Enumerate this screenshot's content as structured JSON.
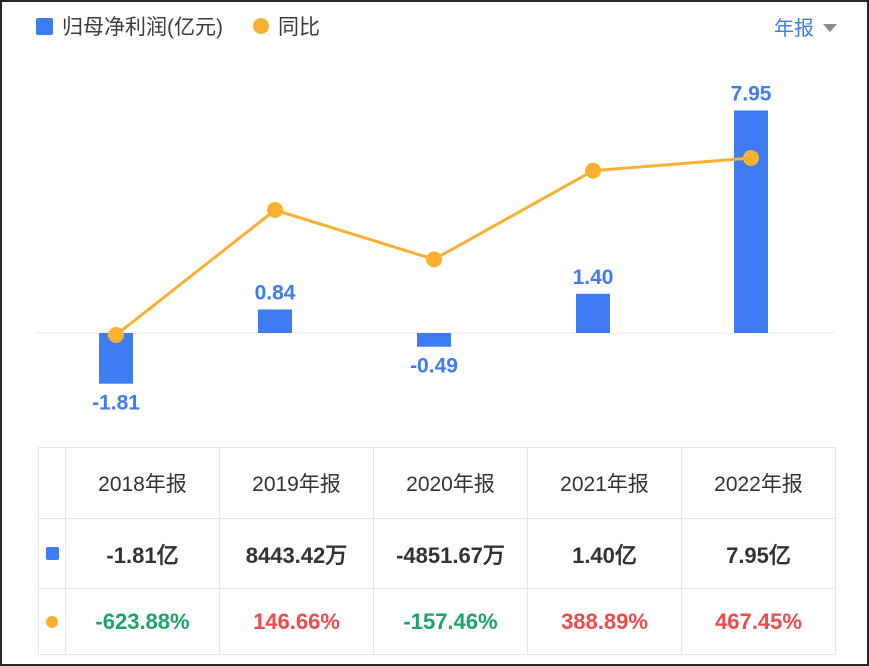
{
  "legend": {
    "profit_label": "归母净利润(亿元)",
    "yoy_label": "同比"
  },
  "period_selector": {
    "label": "年报"
  },
  "colors": {
    "blue": "#3D7CF4",
    "orange": "#FBB034",
    "green": "#1CA566",
    "red": "#F3494B",
    "axis_line": "#EAEAEA"
  },
  "chart_data": {
    "type": "bar+line",
    "categories": [
      "2018年报",
      "2019年报",
      "2020年报",
      "2021年报",
      "2022年报"
    ],
    "series": [
      {
        "name": "归母净利润(亿元)",
        "type": "bar",
        "unit": "亿元",
        "values": [
          -1.81,
          0.84,
          -0.49,
          1.4,
          7.95
        ],
        "labels": [
          "-1.81",
          "0.84",
          "-0.49",
          "1.40",
          "7.95"
        ],
        "color": "#3D7CF4"
      },
      {
        "name": "同比",
        "type": "line",
        "unit": "%",
        "values": [
          -623.88,
          146.66,
          -157.46,
          388.89,
          467.45
        ],
        "color": "#FBB034"
      }
    ],
    "baseline": 0,
    "grid": false,
    "legend_position": "top-left"
  },
  "table": {
    "columns": [
      "2018年报",
      "2019年报",
      "2020年报",
      "2021年报",
      "2022年报"
    ],
    "rows": [
      {
        "name": "net-profit-row",
        "icon": "blue-square-icon",
        "cells": [
          {
            "text": "-1.81亿",
            "color": "dark"
          },
          {
            "text": "8443.42万",
            "color": "dark"
          },
          {
            "text": "-4851.67万",
            "color": "dark"
          },
          {
            "text": "1.40亿",
            "color": "dark"
          },
          {
            "text": "7.95亿",
            "color": "dark"
          }
        ]
      },
      {
        "name": "yoy-row",
        "icon": "orange-dot-icon",
        "cells": [
          {
            "text": "-623.88%",
            "color": "green"
          },
          {
            "text": "146.66%",
            "color": "red"
          },
          {
            "text": "-157.46%",
            "color": "green"
          },
          {
            "text": "388.89%",
            "color": "red"
          },
          {
            "text": "467.45%",
            "color": "red"
          }
        ]
      }
    ]
  }
}
